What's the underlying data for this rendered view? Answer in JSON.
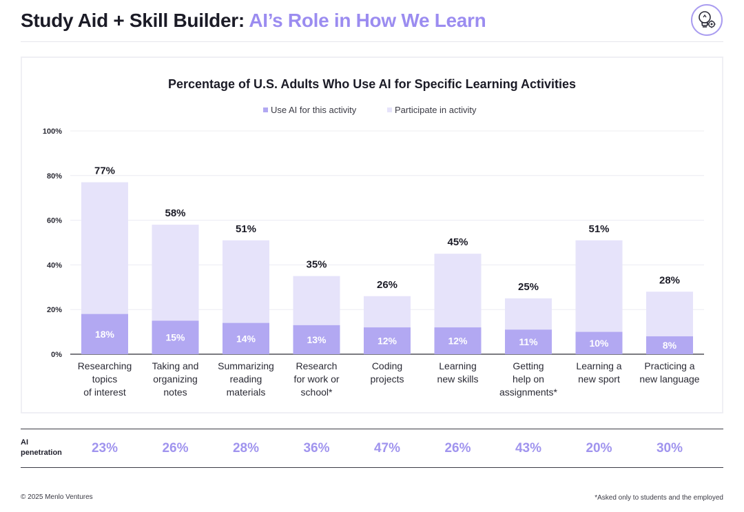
{
  "header": {
    "title_part1": "Study Aid + Skill Builder: ",
    "title_part2": "AI’s Role in How We Learn",
    "icon": "lightbulb-gear-icon"
  },
  "colors": {
    "accent": "#9b8cf0",
    "use_ai": "#b2a8f2",
    "participate": "#e6e3fa",
    "penetration_text": "#a094ee"
  },
  "chart_data": {
    "type": "bar",
    "title": "Percentage of U.S. Adults Who Use AI for Specific Learning Activities",
    "legend": {
      "position": "top-center",
      "items": [
        {
          "label": "Use AI for this activity",
          "color": "#b2a8f2"
        },
        {
          "label": "Participate in activity",
          "color": "#e6e3fa"
        }
      ]
    },
    "ylim": [
      0,
      100
    ],
    "yticks": [
      "0%",
      "20%",
      "40%",
      "60%",
      "80%",
      "100%"
    ],
    "grid": true,
    "categories": [
      [
        "Researching",
        "topics",
        "of interest"
      ],
      [
        "Taking and",
        "organizing",
        "notes"
      ],
      [
        "Summarizing",
        "reading",
        "materials"
      ],
      [
        "Research",
        "for work or",
        "school*"
      ],
      [
        "Coding",
        "projects"
      ],
      [
        "Learning",
        "new skills"
      ],
      [
        "Getting",
        "help on",
        "assignments*"
      ],
      [
        "Learning a",
        "new sport"
      ],
      [
        "Practicing a",
        "new language"
      ]
    ],
    "series": [
      {
        "name": "Participate in activity",
        "values": [
          77,
          58,
          51,
          35,
          26,
          45,
          25,
          51,
          28
        ],
        "labels": [
          "77%",
          "58%",
          "51%",
          "35%",
          "26%",
          "45%",
          "25%",
          "51%",
          "28%"
        ]
      },
      {
        "name": "Use AI for this activity",
        "values": [
          18,
          15,
          14,
          13,
          12,
          12,
          11,
          10,
          8
        ],
        "labels": [
          "18%",
          "15%",
          "14%",
          "13%",
          "12%",
          "12%",
          "11%",
          "10%",
          "8%"
        ]
      }
    ]
  },
  "penetration": {
    "label_line1": "AI",
    "label_line2": "penetration",
    "values": [
      "23%",
      "26%",
      "28%",
      "36%",
      "47%",
      "26%",
      "43%",
      "20%",
      "30%"
    ]
  },
  "footer": {
    "copyright": "© 2025 Menlo Ventures",
    "note": "*Asked only to students and the employed"
  }
}
